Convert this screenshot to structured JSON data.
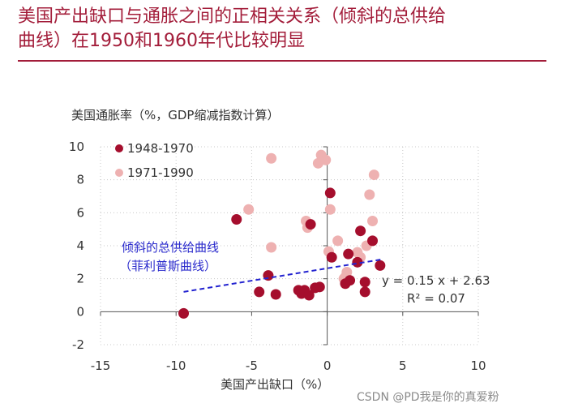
{
  "page": {
    "title_line1": "美国产出缺口与通胀之间的正相关关系（倾斜的总供给",
    "title_line2": "曲线）在1950和1960年代比较明显",
    "watermark": "CSDN @PD我是你的真爱粉"
  },
  "colors": {
    "title": "#a31d3a",
    "series1": "#a50e2d",
    "series2": "#eeb1b1",
    "trend": "#2424d0"
  },
  "chart_data": {
    "type": "scatter",
    "ylabel": "美国通胀率（%，GDP缩减指数计算）",
    "xlabel": "美国产出缺口（%）",
    "xlim": [
      -15,
      10
    ],
    "ylim": [
      -2,
      10
    ],
    "xticks": [
      -15,
      -10,
      -5,
      0,
      5,
      10
    ],
    "yticks": [
      -2,
      0,
      2,
      4,
      6,
      8,
      10
    ],
    "grid": true,
    "legend_position": "top-left",
    "series": [
      {
        "name": "1948-1970",
        "color": "#a50e2d",
        "points": [
          [
            -9.5,
            -0.1
          ],
          [
            -6.0,
            5.6
          ],
          [
            -4.5,
            1.2
          ],
          [
            -3.9,
            2.2
          ],
          [
            -3.4,
            1.05
          ],
          [
            -1.9,
            1.3
          ],
          [
            -1.7,
            1.1
          ],
          [
            -1.5,
            1.3
          ],
          [
            -1.2,
            1.0
          ],
          [
            -1.1,
            5.3
          ],
          [
            -0.8,
            1.45
          ],
          [
            -0.5,
            1.5
          ],
          [
            0.2,
            7.2
          ],
          [
            0.3,
            3.3
          ],
          [
            1.2,
            1.7
          ],
          [
            1.4,
            3.5
          ],
          [
            1.5,
            1.9
          ],
          [
            2.0,
            3.0
          ],
          [
            2.2,
            4.9
          ],
          [
            2.5,
            1.8
          ],
          [
            2.5,
            1.2
          ],
          [
            3.0,
            4.3
          ],
          [
            3.5,
            2.8
          ]
        ]
      },
      {
        "name": "1971-1990",
        "color": "#eeb1b1",
        "points": [
          [
            -5.2,
            6.2
          ],
          [
            -3.7,
            9.3
          ],
          [
            -3.7,
            3.9
          ],
          [
            -1.4,
            5.5
          ],
          [
            -1.3,
            5.1
          ],
          [
            -0.6,
            9.0
          ],
          [
            -0.4,
            9.5
          ],
          [
            -0.1,
            9.2
          ],
          [
            0.1,
            3.65
          ],
          [
            0.2,
            6.2
          ],
          [
            0.7,
            4.3
          ],
          [
            1.1,
            2.0
          ],
          [
            1.2,
            2.1
          ],
          [
            1.3,
            2.4
          ],
          [
            2.0,
            3.6
          ],
          [
            2.2,
            3.3
          ],
          [
            2.6,
            4.0
          ],
          [
            2.8,
            7.1
          ],
          [
            3.0,
            5.5
          ],
          [
            3.1,
            8.3
          ]
        ]
      }
    ],
    "trendline": {
      "slope": 0.15,
      "intercept": 2.63,
      "x_range": [
        -9.5,
        3.7
      ]
    },
    "equation": "y = 0.15 x + 2.63",
    "r_squared": "R² = 0.07",
    "annotation_line1": "倾斜的总供给曲线",
    "annotation_line2": "（菲利普斯曲线）"
  }
}
